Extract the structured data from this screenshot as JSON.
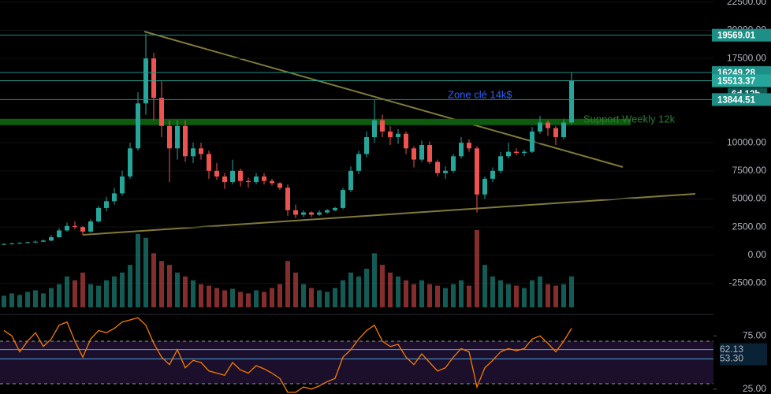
{
  "chart_data": {
    "type": "candlestick",
    "ylim": [
      -5200,
      22700
    ],
    "yticks": [
      {
        "value": -2500,
        "label": "-2500.00"
      },
      {
        "value": 0,
        "label": "0.00"
      },
      {
        "value": 2500,
        "label": "2500.00"
      },
      {
        "value": 5000,
        "label": "5000.00"
      },
      {
        "value": 7500,
        "label": "7500.00"
      },
      {
        "value": 10000,
        "label": "10000.00"
      },
      {
        "value": 17500,
        "label": "17500.00"
      },
      {
        "value": 20000,
        "label": "20000.00"
      },
      {
        "value": 22500,
        "label": "22500.00"
      }
    ],
    "up_color": "#26a69a",
    "down_color": "#ef5350",
    "open": [
      950,
      1000,
      1050,
      1100,
      1150,
      1200,
      1300,
      1600,
      2200,
      2600,
      2500,
      2100,
      3000,
      4200,
      4800,
      5500,
      7000,
      9500,
      13500,
      17500,
      14000,
      11500,
      9500,
      11500,
      8800,
      9500,
      9000,
      7500,
      7000,
      6500,
      7500,
      6600,
      6500,
      7000,
      6600,
      6400,
      6000,
      4000,
      3600,
      3800,
      3600,
      3800,
      4000,
      4200,
      5800,
      7500,
      9000,
      10500,
      12000,
      11000,
      10500,
      10800,
      9500,
      8500,
      9800,
      8300,
      7300,
      7500,
      8800,
      10000,
      9500,
      5400,
      6800,
      7500,
      8800,
      9200,
      9100,
      9200,
      11000,
      11800,
      11300,
      10500,
      11800
    ],
    "high": [
      1050,
      1100,
      1150,
      1200,
      1300,
      1400,
      1800,
      2400,
      2900,
      3000,
      2600,
      3200,
      4400,
      5200,
      6000,
      7500,
      10000,
      14500,
      19700,
      18000,
      15500,
      12000,
      12000,
      12000,
      10000,
      10000,
      9300,
      8200,
      7300,
      8500,
      7700,
      6900,
      7300,
      7300,
      6800,
      6500,
      6300,
      4500,
      4000,
      3900,
      4000,
      4100,
      4300,
      6000,
      7900,
      9300,
      11000,
      13800,
      12500,
      11500,
      11200,
      11000,
      9700,
      10200,
      10100,
      8500,
      7900,
      9000,
      10500,
      10300,
      9700,
      7000,
      7800,
      9200,
      10000,
      9500,
      9400,
      11400,
      12400,
      12000,
      11500,
      12100,
      16300
    ],
    "low": [
      900,
      950,
      1000,
      1050,
      1100,
      1150,
      1250,
      1550,
      2100,
      2300,
      1800,
      2000,
      2900,
      3900,
      4500,
      5300,
      6800,
      9300,
      12500,
      12000,
      10500,
      6500,
      8500,
      8300,
      8200,
      8500,
      6800,
      6700,
      5900,
      6300,
      6100,
      6000,
      6300,
      6300,
      6200,
      5800,
      3500,
      3300,
      3400,
      3400,
      3500,
      3700,
      3900,
      4100,
      5600,
      7200,
      8700,
      10000,
      10500,
      9800,
      9900,
      9000,
      7800,
      8300,
      8100,
      7000,
      6800,
      7300,
      8600,
      9200,
      3800,
      5000,
      6500,
      7300,
      8600,
      8900,
      8800,
      9100,
      10800,
      10600,
      9800,
      10300,
      11600
    ],
    "close": [
      1000,
      1050,
      1100,
      1150,
      1200,
      1300,
      1600,
      2200,
      2600,
      2500,
      2100,
      3000,
      4200,
      4800,
      5500,
      7000,
      9500,
      13500,
      17500,
      14000,
      11500,
      9500,
      11500,
      8800,
      9500,
      9000,
      7500,
      7000,
      6500,
      7500,
      6600,
      6500,
      7000,
      6600,
      6400,
      6000,
      4000,
      3600,
      3800,
      3600,
      3800,
      4000,
      4200,
      5800,
      7500,
      9000,
      10500,
      12000,
      11000,
      10500,
      10800,
      9500,
      8500,
      9800,
      8300,
      7300,
      7500,
      8800,
      10000,
      9500,
      5400,
      6800,
      7500,
      8800,
      9200,
      9100,
      9200,
      11000,
      11800,
      11300,
      10500,
      11800,
      15500
    ],
    "volume": [
      15,
      18,
      16,
      20,
      22,
      18,
      25,
      30,
      40,
      35,
      45,
      30,
      28,
      35,
      40,
      45,
      55,
      95,
      90,
      70,
      60,
      55,
      45,
      40,
      35,
      30,
      28,
      25,
      22,
      24,
      20,
      18,
      22,
      20,
      25,
      30,
      60,
      45,
      30,
      25,
      22,
      20,
      25,
      35,
      45,
      40,
      50,
      70,
      55,
      45,
      40,
      35,
      30,
      35,
      30,
      28,
      25,
      30,
      35,
      28,
      100,
      55,
      40,
      35,
      30,
      28,
      25,
      35,
      40,
      30,
      28,
      30,
      40
    ],
    "levels": [
      {
        "value": 19569.01,
        "color": "#1e8f86"
      },
      {
        "value": 16249.28,
        "color": "#1e8f86"
      },
      {
        "value": 15513.37,
        "color": "#26a69a"
      },
      {
        "value": 13844.51,
        "color": "#1e8f86"
      }
    ],
    "countdown": "6d 12h",
    "annotations": [
      {
        "text": "Zone clé 14k$",
        "color": "#2962ff"
      },
      {
        "text": "Support Weekly 12k",
        "value": 11850,
        "color": "#2e7d32"
      }
    ],
    "rsi": {
      "values": [
        80,
        75,
        60,
        70,
        78,
        65,
        72,
        85,
        88,
        70,
        55,
        72,
        80,
        78,
        82,
        88,
        90,
        92,
        85,
        68,
        55,
        48,
        62,
        45,
        52,
        50,
        42,
        40,
        38,
        50,
        43,
        40,
        47,
        44,
        40,
        35,
        22,
        22,
        27,
        25,
        28,
        32,
        35,
        55,
        62,
        72,
        80,
        85,
        70,
        65,
        67,
        55,
        48,
        58,
        50,
        42,
        45,
        55,
        63,
        60,
        27,
        45,
        52,
        60,
        63,
        61,
        63,
        72,
        75,
        68,
        60,
        70,
        82
      ],
      "ylim": [
        20.4,
        94.4
      ],
      "yticks": [
        {
          "value": 25,
          "label": "25.00"
        },
        {
          "value": 75,
          "label": "75.00"
        }
      ],
      "bands": [
        30,
        70
      ],
      "levels": [
        62.13,
        {
          "value": 53.3,
          "label": "53.30"
        }
      ],
      "color": "#f57c00"
    }
  }
}
